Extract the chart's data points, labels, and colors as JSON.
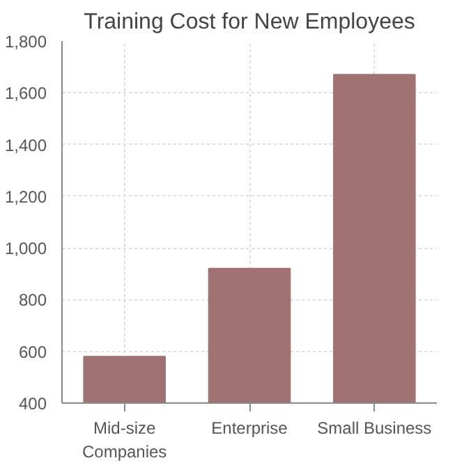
{
  "chart_data": {
    "type": "bar",
    "title": "Training Cost for New Employees",
    "categories": [
      "Mid-size Companies",
      "Enterprise",
      "Small Business"
    ],
    "values": [
      580,
      920,
      1670
    ],
    "color": "#a17272",
    "ylim": [
      400,
      1800
    ],
    "yticks": [
      {
        "value": 400,
        "label": "400"
      },
      {
        "value": 600,
        "label": "600"
      },
      {
        "value": 800,
        "label": "800"
      },
      {
        "value": 1000,
        "label": "1,000"
      },
      {
        "value": 1200,
        "label": "1,200"
      },
      {
        "value": 1400,
        "label": "1,400"
      },
      {
        "value": 1600,
        "label": "1,600"
      },
      {
        "value": 1800,
        "label": "1,800"
      }
    ],
    "grid": true
  }
}
